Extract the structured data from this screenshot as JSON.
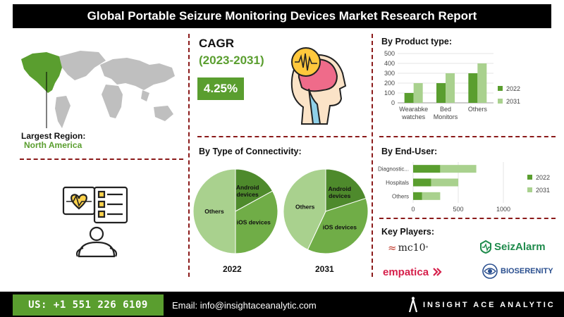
{
  "title": "Global Portable Seizure Monitoring Devices Market Research Report",
  "region": {
    "label": "Largest Region:",
    "value": "North America"
  },
  "cagr": {
    "label": "CAGR",
    "period": "(2023-2031)",
    "value": "4.25%"
  },
  "colors": {
    "dark_green": "#5a9e2f",
    "light_green": "#a9d18e",
    "mid_green": "#70ad47",
    "divider": "#8b1a1a"
  },
  "chart_data": [
    {
      "type": "bar",
      "title": "By Product type:",
      "categories": [
        "Wearable watches",
        "Bed Monitors",
        "Others"
      ],
      "category_lines": [
        [
          "Wearabke",
          "watches"
        ],
        [
          "Bed",
          "Monitors"
        ],
        [
          "Others"
        ]
      ],
      "series": [
        {
          "name": "2022",
          "values": [
            100,
            200,
            300
          ]
        },
        {
          "name": "2031",
          "values": [
            200,
            300,
            400
          ]
        }
      ],
      "ylim": [
        0,
        500
      ],
      "yticks": [
        "0",
        "100",
        "200",
        "300",
        "400",
        "500"
      ],
      "legend": "right"
    },
    {
      "type": "pie",
      "title": "By Type of Connectivity:",
      "subtitle": "2022",
      "slices": [
        {
          "name": "Android devices",
          "lines": [
            "Android",
            "devices"
          ],
          "value": 17
        },
        {
          "name": "iOS devices",
          "lines": [
            "iOS devices"
          ],
          "value": 33
        },
        {
          "name": "Others",
          "lines": [
            "Others"
          ],
          "value": 50
        }
      ]
    },
    {
      "type": "pie",
      "subtitle": "2031",
      "slices": [
        {
          "name": "Android devices",
          "lines": [
            "Android",
            "devices"
          ],
          "value": 20
        },
        {
          "name": "iOS devices",
          "lines": [
            "iOS devices"
          ],
          "value": 37
        },
        {
          "name": "Others",
          "lines": [
            "Others"
          ],
          "value": 43
        }
      ]
    },
    {
      "type": "bar",
      "orientation": "horizontal",
      "stacked": true,
      "title": "By End-User:",
      "categories": [
        "Diagnostic...",
        "Hospitals",
        "Others"
      ],
      "series": [
        {
          "name": "2022",
          "values": [
            300,
            200,
            100
          ]
        },
        {
          "name": "2031",
          "values": [
            400,
            300,
            200
          ]
        }
      ],
      "xlim": [
        0,
        1000
      ],
      "xticks": [
        "0",
        "500",
        "1000"
      ],
      "legend": "right"
    }
  ],
  "key_players": {
    "title": "Key Players:",
    "logos": [
      "mc10",
      "SeizAlarm",
      "empatica",
      "BIOSERENITY"
    ]
  },
  "footer": {
    "phone": "US: +1 551 226 6109",
    "email": "Email: info@insightaceanalytic.com",
    "brand": "INSIGHT ACE ANALYTIC"
  }
}
